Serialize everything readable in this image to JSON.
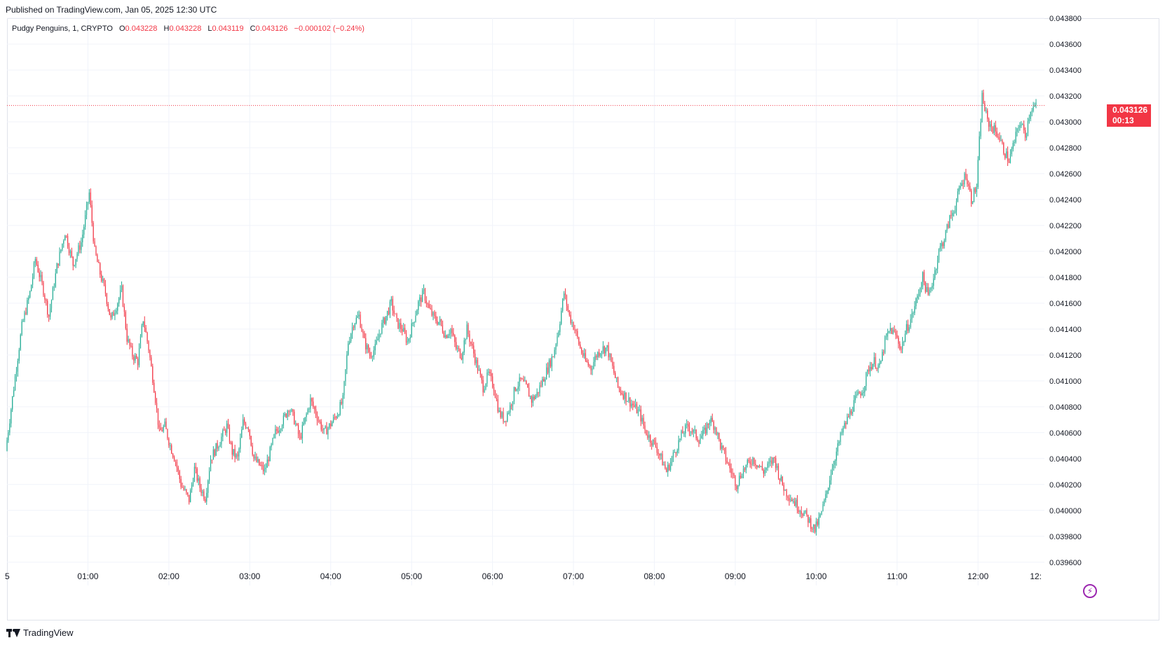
{
  "published_text": "Published on TradingView.com, Jan 05, 2025 12:30 UTC",
  "legend": {
    "symbol": "Pudgy Penguins, 1, CRYPTO",
    "open_label": "O",
    "open": "0.043228",
    "high_label": "H",
    "high": "0.043228",
    "low_label": "L",
    "low": "0.043119",
    "close_label": "C",
    "close": "0.043126",
    "change": "−0.000102 (−0.24%)"
  },
  "price_tag": {
    "price": "0.043126",
    "countdown": "00:13"
  },
  "brand": "TradingView",
  "colors": {
    "up": "#22ab94",
    "down": "#f23645",
    "grid": "#f0f3fa",
    "text": "#131722",
    "accent": "#9c27b0"
  },
  "icons": {
    "bolt": "lightning-bolt-icon",
    "logo": "tradingview-logo-icon"
  },
  "chart_data": {
    "type": "candlestick",
    "interval": "1 minute",
    "y_ticks": [
      "0.043800",
      "0.043600",
      "0.043400",
      "0.043200",
      "0.043000",
      "0.042800",
      "0.042600",
      "0.042400",
      "0.042200",
      "0.042000",
      "0.041800",
      "0.041600",
      "0.041400",
      "0.041200",
      "0.041000",
      "0.040800",
      "0.040600",
      "0.040400",
      "0.040200",
      "0.040000",
      "0.039800",
      "0.039600"
    ],
    "y_range": [
      0.03955,
      0.0438
    ],
    "x_ticks": [
      "5",
      "01:00",
      "02:00",
      "03:00",
      "04:00",
      "05:00",
      "06:00",
      "07:00",
      "08:00",
      "09:00",
      "10:00",
      "11:00",
      "12:00",
      "12:"
    ],
    "x_tick_times": [
      0,
      60,
      120,
      180,
      240,
      300,
      360,
      420,
      480,
      540,
      600,
      660,
      720,
      780
    ],
    "time_range_min": [
      0,
      763
    ],
    "last_price": 0.043126,
    "price_path": [
      [
        0,
        0.04046
      ],
      [
        6,
        0.04095
      ],
      [
        12,
        0.04142
      ],
      [
        18,
        0.04168
      ],
      [
        22,
        0.04194
      ],
      [
        28,
        0.0417
      ],
      [
        32,
        0.0415
      ],
      [
        38,
        0.04188
      ],
      [
        44,
        0.04215
      ],
      [
        50,
        0.0419
      ],
      [
        56,
        0.04207
      ],
      [
        60,
        0.04232
      ],
      [
        62,
        0.04245
      ],
      [
        66,
        0.042
      ],
      [
        70,
        0.04183
      ],
      [
        74,
        0.04168
      ],
      [
        78,
        0.04147
      ],
      [
        82,
        0.04158
      ],
      [
        86,
        0.0417
      ],
      [
        90,
        0.04133
      ],
      [
        94,
        0.0412
      ],
      [
        98,
        0.04115
      ],
      [
        102,
        0.04148
      ],
      [
        106,
        0.04125
      ],
      [
        110,
        0.04095
      ],
      [
        114,
        0.0406
      ],
      [
        118,
        0.04065
      ],
      [
        122,
        0.0405
      ],
      [
        126,
        0.04038
      ],
      [
        130,
        0.0402
      ],
      [
        136,
        0.04008
      ],
      [
        140,
        0.04032
      ],
      [
        144,
        0.04018
      ],
      [
        148,
        0.0401
      ],
      [
        152,
        0.0404
      ],
      [
        158,
        0.04052
      ],
      [
        164,
        0.04065
      ],
      [
        168,
        0.04045
      ],
      [
        172,
        0.0404
      ],
      [
        176,
        0.04068
      ],
      [
        180,
        0.04065
      ],
      [
        184,
        0.0404
      ],
      [
        188,
        0.04035
      ],
      [
        192,
        0.0403
      ],
      [
        196,
        0.04045
      ],
      [
        200,
        0.0406
      ],
      [
        206,
        0.0407
      ],
      [
        210,
        0.0408
      ],
      [
        214,
        0.0407
      ],
      [
        218,
        0.04055
      ],
      [
        222,
        0.0407
      ],
      [
        226,
        0.04085
      ],
      [
        230,
        0.04075
      ],
      [
        236,
        0.0406
      ],
      [
        240,
        0.04065
      ],
      [
        246,
        0.04075
      ],
      [
        250,
        0.04085
      ],
      [
        254,
        0.0413
      ],
      [
        258,
        0.04145
      ],
      [
        262,
        0.0415
      ],
      [
        266,
        0.0413
      ],
      [
        270,
        0.0412
      ],
      [
        274,
        0.04125
      ],
      [
        278,
        0.0414
      ],
      [
        282,
        0.0415
      ],
      [
        286,
        0.0416
      ],
      [
        290,
        0.04145
      ],
      [
        294,
        0.0414
      ],
      [
        298,
        0.0413
      ],
      [
        302,
        0.04145
      ],
      [
        306,
        0.0416
      ],
      [
        310,
        0.04168
      ],
      [
        314,
        0.04155
      ],
      [
        318,
        0.04148
      ],
      [
        322,
        0.04145
      ],
      [
        326,
        0.04135
      ],
      [
        330,
        0.0414
      ],
      [
        334,
        0.04125
      ],
      [
        338,
        0.0412
      ],
      [
        342,
        0.0414
      ],
      [
        346,
        0.04125
      ],
      [
        350,
        0.0411
      ],
      [
        354,
        0.04095
      ],
      [
        358,
        0.04105
      ],
      [
        362,
        0.04095
      ],
      [
        366,
        0.04075
      ],
      [
        370,
        0.0407
      ],
      [
        374,
        0.0408
      ],
      [
        378,
        0.04095
      ],
      [
        382,
        0.041
      ],
      [
        386,
        0.04095
      ],
      [
        390,
        0.04085
      ],
      [
        394,
        0.0409
      ],
      [
        398,
        0.041
      ],
      [
        402,
        0.0411
      ],
      [
        406,
        0.0412
      ],
      [
        410,
        0.0414
      ],
      [
        414,
        0.04168
      ],
      [
        418,
        0.0415
      ],
      [
        422,
        0.0414
      ],
      [
        426,
        0.04125
      ],
      [
        430,
        0.04115
      ],
      [
        434,
        0.0411
      ],
      [
        438,
        0.0412
      ],
      [
        442,
        0.04125
      ],
      [
        446,
        0.04125
      ],
      [
        450,
        0.0411
      ],
      [
        454,
        0.04095
      ],
      [
        458,
        0.0409
      ],
      [
        462,
        0.04085
      ],
      [
        466,
        0.0408
      ],
      [
        470,
        0.04075
      ],
      [
        474,
        0.04062
      ],
      [
        478,
        0.04055
      ],
      [
        482,
        0.0405
      ],
      [
        486,
        0.0404
      ],
      [
        490,
        0.0403
      ],
      [
        494,
        0.0404
      ],
      [
        498,
        0.0405
      ],
      [
        502,
        0.0406
      ],
      [
        506,
        0.04065
      ],
      [
        510,
        0.0406
      ],
      [
        514,
        0.04055
      ],
      [
        518,
        0.0406
      ],
      [
        522,
        0.0407
      ],
      [
        526,
        0.04065
      ],
      [
        530,
        0.0405
      ],
      [
        534,
        0.0404
      ],
      [
        538,
        0.0403
      ],
      [
        542,
        0.0402
      ],
      [
        546,
        0.0403
      ],
      [
        550,
        0.04035
      ],
      [
        554,
        0.0404
      ],
      [
        558,
        0.04035
      ],
      [
        562,
        0.0403
      ],
      [
        566,
        0.04035
      ],
      [
        570,
        0.0404
      ],
      [
        574,
        0.04025
      ],
      [
        578,
        0.04015
      ],
      [
        582,
        0.0401
      ],
      [
        586,
        0.04005
      ],
      [
        590,
        0.04
      ],
      [
        594,
        0.03995
      ],
      [
        598,
        0.03988
      ],
      [
        600,
        0.03985
      ],
      [
        604,
        0.03995
      ],
      [
        608,
        0.0401
      ],
      [
        612,
        0.0403
      ],
      [
        616,
        0.04045
      ],
      [
        620,
        0.0406
      ],
      [
        626,
        0.04075
      ],
      [
        630,
        0.04085
      ],
      [
        636,
        0.04095
      ],
      [
        640,
        0.0411
      ],
      [
        644,
        0.04115
      ],
      [
        648,
        0.0411
      ],
      [
        652,
        0.0413
      ],
      [
        656,
        0.0414
      ],
      [
        660,
        0.04135
      ],
      [
        664,
        0.04125
      ],
      [
        668,
        0.0414
      ],
      [
        672,
        0.0415
      ],
      [
        676,
        0.04165
      ],
      [
        680,
        0.0418
      ],
      [
        684,
        0.04165
      ],
      [
        688,
        0.0418
      ],
      [
        692,
        0.042
      ],
      [
        696,
        0.0421
      ],
      [
        700,
        0.04225
      ],
      [
        704,
        0.04235
      ],
      [
        708,
        0.0425
      ],
      [
        712,
        0.0426
      ],
      [
        716,
        0.0424
      ],
      [
        720,
        0.0425
      ],
      [
        724,
        0.0432
      ],
      [
        728,
        0.043
      ],
      [
        732,
        0.04295
      ],
      [
        736,
        0.0429
      ],
      [
        740,
        0.04278
      ],
      [
        744,
        0.0427
      ],
      [
        748,
        0.04285
      ],
      [
        752,
        0.043
      ],
      [
        756,
        0.0429
      ],
      [
        760,
        0.0431
      ],
      [
        763,
        0.04312
      ]
    ]
  }
}
